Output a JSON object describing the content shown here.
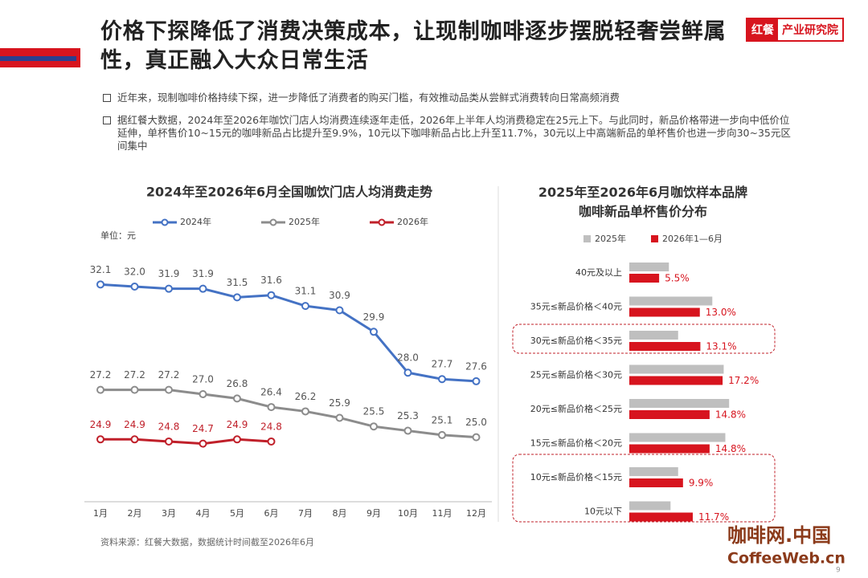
{
  "header": {
    "title": "价格下探降低了消费决策成本，让现制咖啡逐步摆脱轻奢尝鲜属性，真正融入大众日常生活",
    "logo": "红餐",
    "logo_sub": "产业研究院"
  },
  "bullets": [
    "近年来，现制咖啡价格持续下探，进一步降低了消费者的购买门槛，有效推动品类从尝鲜式消费转向日常高频消费",
    "据红餐大数据，2024年至2026年咖饮门店人均消费连续逐年走低，2026年上半年人均消费稳定在25元上下。与此同时，新品价格带进一步向中低价位延伸，单杯售价10~15元的咖啡新品占比提升至9.9%，10元以下咖啡新品占比上升至11.7%，30元以上中高端新品的单杯售价也进一步向30~35元区间集中"
  ],
  "chart_data": [
    {
      "type": "line",
      "title": "2024年至2026年6月全国咖饮门店人均消费走势",
      "unit": "单位：元",
      "categories": [
        "1月",
        "2月",
        "3月",
        "4月",
        "5月",
        "6月",
        "7月",
        "8月",
        "9月",
        "10月",
        "11月",
        "12月"
      ],
      "ylim": [
        22,
        34.5
      ],
      "series": [
        {
          "name": "2024年",
          "color": "#4472c4",
          "values": [
            32.1,
            32.0,
            31.9,
            31.9,
            31.5,
            31.6,
            31.1,
            30.9,
            29.9,
            28.0,
            27.7,
            27.6
          ],
          "value_labels": [
            "32.1",
            "32.0",
            "31.9",
            "31.9",
            "31.5",
            "31.6",
            "31.1",
            "30.9",
            "29.9",
            "28.0",
            "27.7",
            "27.6"
          ]
        },
        {
          "name": "2025年",
          "color": "#8c8c8c",
          "values": [
            27.2,
            27.2,
            27.2,
            27.0,
            26.8,
            26.4,
            26.2,
            25.9,
            25.5,
            25.3,
            25.1,
            25.0
          ],
          "value_labels": [
            "27.2",
            "27.2",
            "27.2",
            "27.0",
            "26.8",
            "26.4",
            "26.2",
            "25.9",
            "25.5",
            "25.3",
            "25.1",
            "25.0"
          ]
        },
        {
          "name": "2026年",
          "color": "#c0202a",
          "values": [
            24.9,
            24.9,
            24.8,
            24.7,
            24.9,
            24.8,
            null,
            null,
            null,
            null,
            null,
            null
          ],
          "value_labels": [
            "24.9",
            "24.9",
            "24.8",
            "24.7",
            "24.9",
            "24.8",
            null,
            null,
            null,
            null,
            null,
            null
          ]
        }
      ]
    },
    {
      "type": "hbar",
      "title": "2025年至2026年6月咖饮样本品牌咖啡新品单杯售价分布",
      "categories": [
        "40元及以上",
        "35元≤新品价格＜40元",
        "30元≤新品价格＜35元",
        "25元≤新品价格＜30元",
        "20元≤新品价格＜25元",
        "15元≤新品价格＜20元",
        "10元≤新品价格＜15元",
        "10元以下"
      ],
      "xlim": [
        0,
        20
      ],
      "series": [
        {
          "name": "2025年",
          "color": "#bfbfbf",
          "values": [
            7.3,
            15.3,
            9.0,
            17.4,
            18.4,
            17.7,
            9.0,
            7.6
          ]
        },
        {
          "name": "2026年1—6月",
          "color": "#d7141e",
          "values": [
            5.5,
            13.0,
            13.1,
            17.2,
            14.8,
            14.8,
            9.9,
            11.7
          ],
          "value_labels": [
            "5.5%",
            "13.0%",
            "13.1%",
            "17.2%",
            "14.8%",
            "14.8%",
            "9.9%",
            "11.7%"
          ]
        }
      ]
    }
  ],
  "source": "资料来源：红餐大数据，数据统计时间截至2026年6月",
  "watermark": {
    "cn": "咖啡网.中国",
    "en": "CoffeeWeb.cn"
  },
  "page": "9"
}
